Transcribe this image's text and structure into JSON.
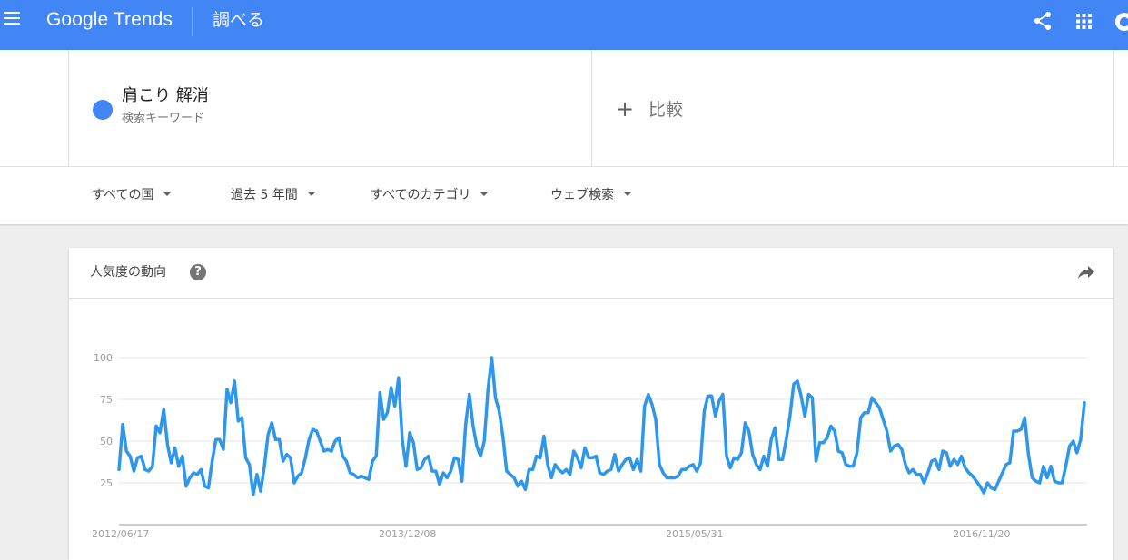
{
  "header": {
    "logo": "Google Trends",
    "title": "調べる"
  },
  "search_term": {
    "name": "肩こり 解消",
    "type": "検索キーワード",
    "color": "#4285f4"
  },
  "compare": {
    "plus": "+",
    "label": "比較"
  },
  "filters": [
    {
      "label": "すべての国"
    },
    {
      "label": "過去 5 年間"
    },
    {
      "label": "すべてのカテゴリ"
    },
    {
      "label": "ウェブ検索"
    }
  ],
  "card": {
    "title": "人気度の動向",
    "help": "?"
  },
  "chart_data": {
    "type": "line",
    "title": "",
    "xlabel": "",
    "ylabel": "",
    "ylim": [
      0,
      100
    ],
    "yticks": [
      25,
      50,
      75,
      100
    ],
    "xticks": [
      "2012/06/17",
      "2013/12/08",
      "2015/05/31",
      "2016/11/20"
    ],
    "xticks_index": [
      0,
      77,
      154,
      231
    ],
    "grid": true,
    "series": [
      {
        "color": "#4285f4",
        "values": [
          33,
          60,
          44,
          41,
          32,
          40,
          41,
          33,
          32,
          35,
          59,
          55,
          69,
          48,
          37,
          46,
          35,
          41,
          23,
          28,
          31,
          30,
          33,
          23,
          22,
          38,
          51,
          51,
          45,
          81,
          73,
          86,
          62,
          64,
          40,
          36,
          18,
          30,
          20,
          35,
          54,
          61,
          51,
          51,
          38,
          42,
          40,
          25,
          29,
          31,
          40,
          51,
          57,
          56,
          50,
          44,
          45,
          44,
          50,
          52,
          41,
          38,
          31,
          30,
          28,
          29,
          28,
          27,
          38,
          41,
          79,
          63,
          67,
          82,
          71,
          88,
          51,
          35,
          55,
          49,
          33,
          34,
          39,
          41,
          32,
          32,
          24,
          31,
          28,
          32,
          40,
          39,
          26,
          60,
          78,
          59,
          47,
          41,
          50,
          81,
          100,
          76,
          68,
          53,
          32,
          30,
          28,
          23,
          26,
          21,
          33,
          33,
          41,
          40,
          53,
          36,
          28,
          36,
          33,
          31,
          33,
          30,
          44,
          40,
          34,
          46,
          40,
          40,
          41,
          31,
          30,
          32,
          33,
          42,
          32,
          36,
          39,
          40,
          33,
          39,
          32,
          71,
          78,
          72,
          63,
          36,
          31,
          28,
          28,
          28,
          29,
          33,
          33,
          35,
          36,
          32,
          37,
          68,
          77,
          77,
          65,
          74,
          78,
          41,
          34,
          40,
          39,
          43,
          61,
          56,
          42,
          36,
          33,
          41,
          35,
          51,
          58,
          39,
          39,
          51,
          65,
          84,
          86,
          77,
          65,
          78,
          76,
          38,
          49,
          49,
          52,
          59,
          56,
          44,
          43,
          36,
          35,
          35,
          43,
          64,
          67,
          67,
          76,
          73,
          70,
          63,
          56,
          44,
          47,
          48,
          45,
          36,
          31,
          33,
          30,
          30,
          25,
          31,
          38,
          39,
          33,
          44,
          43,
          35,
          39,
          36,
          41,
          34,
          31,
          29,
          26,
          23,
          19,
          25,
          22,
          21,
          26,
          31,
          36,
          37,
          56,
          56,
          57,
          64,
          42,
          28,
          26,
          25,
          35,
          28,
          35,
          26,
          25,
          25,
          35,
          47,
          50,
          43,
          51,
          73
        ]
      }
    ]
  }
}
